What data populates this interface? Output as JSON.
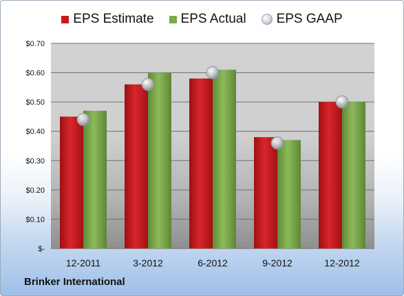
{
  "company": "Brinker International",
  "colors": {
    "estimate": "#c8181c",
    "actual": "#78a94a",
    "gaap": "#c0c6cc"
  },
  "chart_data": {
    "type": "bar",
    "categories": [
      "12-2011",
      "3-2012",
      "6-2012",
      "9-2012",
      "12-2012"
    ],
    "series": [
      {
        "name": "EPS Estimate",
        "values": [
          0.45,
          0.56,
          0.58,
          0.38,
          0.5
        ]
      },
      {
        "name": "EPS Actual",
        "values": [
          0.47,
          0.6,
          0.61,
          0.37,
          0.5
        ]
      },
      {
        "name": "EPS GAAP",
        "type": "scatter",
        "values": [
          0.44,
          0.56,
          0.6,
          0.36,
          0.5
        ]
      }
    ],
    "yticks": [
      "$-",
      "$0.10",
      "$0.20",
      "$0.30",
      "$0.40",
      "$0.50",
      "$0.60",
      "$0.70"
    ],
    "ylim": [
      0,
      0.7
    ],
    "grid": true,
    "legend": "top"
  }
}
